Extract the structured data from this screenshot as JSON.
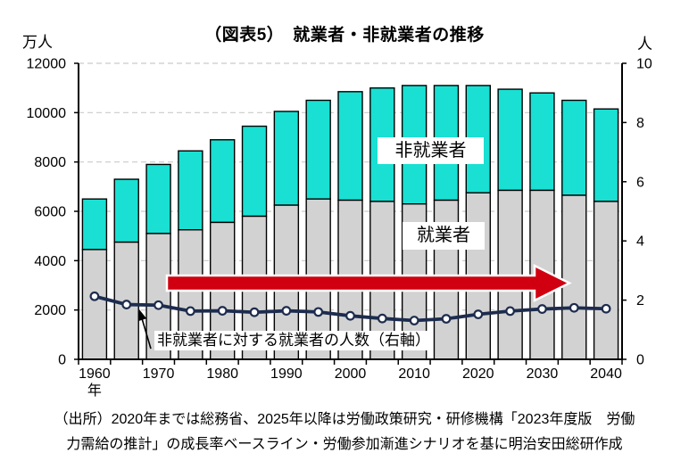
{
  "chart": {
    "title": "（図表5）　就業者・非就業者の推移",
    "left_axis_unit": "万人",
    "right_axis_unit": "人",
    "series_labels": {
      "non_employed": "非就業者",
      "employed": "就業者"
    },
    "line_label": "非就業者に対する就業者の人数（右軸）"
  },
  "chart_data": {
    "type": "combo: stacked bar (left axis) + line (right axis)",
    "title": "（図表5）　就業者・非就業者の推移",
    "x": [
      1960,
      1965,
      1970,
      1975,
      1980,
      1985,
      1990,
      1995,
      2000,
      2005,
      2010,
      2015,
      2020,
      2025,
      2030,
      2035,
      2040
    ],
    "x_axis_unit": "年",
    "x_tick_labels": [
      "1960",
      "1970",
      "1980",
      "1990",
      "2000",
      "2010",
      "2020",
      "2030",
      "2040"
    ],
    "left_axis": {
      "unit": "万人",
      "min": 0,
      "max": 12000,
      "tick_step": 2000
    },
    "right_axis": {
      "unit": "人",
      "min": 0,
      "max": 10,
      "tick_step": 2
    },
    "grid": "horizontal dashed gridlines",
    "series": [
      {
        "name": "就業者",
        "type": "bar",
        "stack": "population",
        "axis": "left",
        "color": "#d2d2d2",
        "values": [
          4450,
          4750,
          5100,
          5250,
          5550,
          5800,
          6250,
          6500,
          6450,
          6400,
          6300,
          6450,
          6750,
          6850,
          6850,
          6650,
          6400
        ]
      },
      {
        "name": "非就業者",
        "type": "bar",
        "stack": "population",
        "axis": "left",
        "color": "#19e0d2",
        "values": [
          2050,
          2550,
          2800,
          3200,
          3350,
          3650,
          3800,
          4000,
          4400,
          4600,
          4800,
          4650,
          4350,
          4100,
          3950,
          3850,
          3750
        ]
      },
      {
        "name": "非就業者に対する就業者の人数（右軸）",
        "type": "line",
        "axis": "right",
        "color": "#1d2c4e",
        "values": [
          2.13,
          1.85,
          1.83,
          1.63,
          1.64,
          1.59,
          1.64,
          1.6,
          1.47,
          1.38,
          1.31,
          1.37,
          1.52,
          1.63,
          1.7,
          1.74,
          1.71
        ]
      }
    ]
  },
  "annotations": {
    "trend_arrow": {
      "description": "big red rightward arrow across chart",
      "color": "#d10011"
    },
    "pointer_arrow": {
      "description": "black arrow from line label pointing to ratio line",
      "color": "#000000"
    }
  },
  "colors": {
    "employed_bar": "#d2d2d2",
    "non_employed_bar": "#19e0d2",
    "ratio_line": "#1d2c4e",
    "trend_arrow": "#d10011",
    "bar_outline": "#000000",
    "gridline": "#c9c9c9",
    "axis": "#000000"
  },
  "source": {
    "line1": "（出所）2020年までは総務省、2025年以降は労働政策研究・研修機構「2023年度版　労働",
    "line2": "力需給の推計」の成長率ベースライン・労働参加漸進シナリオを基に明治安田総研作成"
  }
}
